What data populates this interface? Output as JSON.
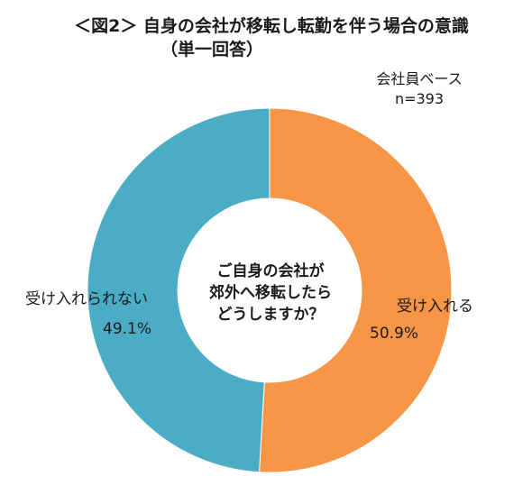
{
  "title": {
    "line1": "＜図2＞ 自身の会社が移転し転勤を伴う場合の意識",
    "line2": "（単一回答）"
  },
  "base_note": {
    "line1": "会社員ベース",
    "line2": "n=393"
  },
  "center_text": [
    "ご自身の会社が",
    "郊外へ移転したら",
    "どうしますか？"
  ],
  "chart_data": {
    "type": "pie",
    "donut": true,
    "slices": [
      {
        "label": "受け入れる",
        "value": 50.9,
        "value_label": "50.9%",
        "color": "#f79646"
      },
      {
        "label": "受け入れられない",
        "value": 49.1,
        "value_label": "49.1%",
        "color": "#4bacc6"
      }
    ]
  }
}
